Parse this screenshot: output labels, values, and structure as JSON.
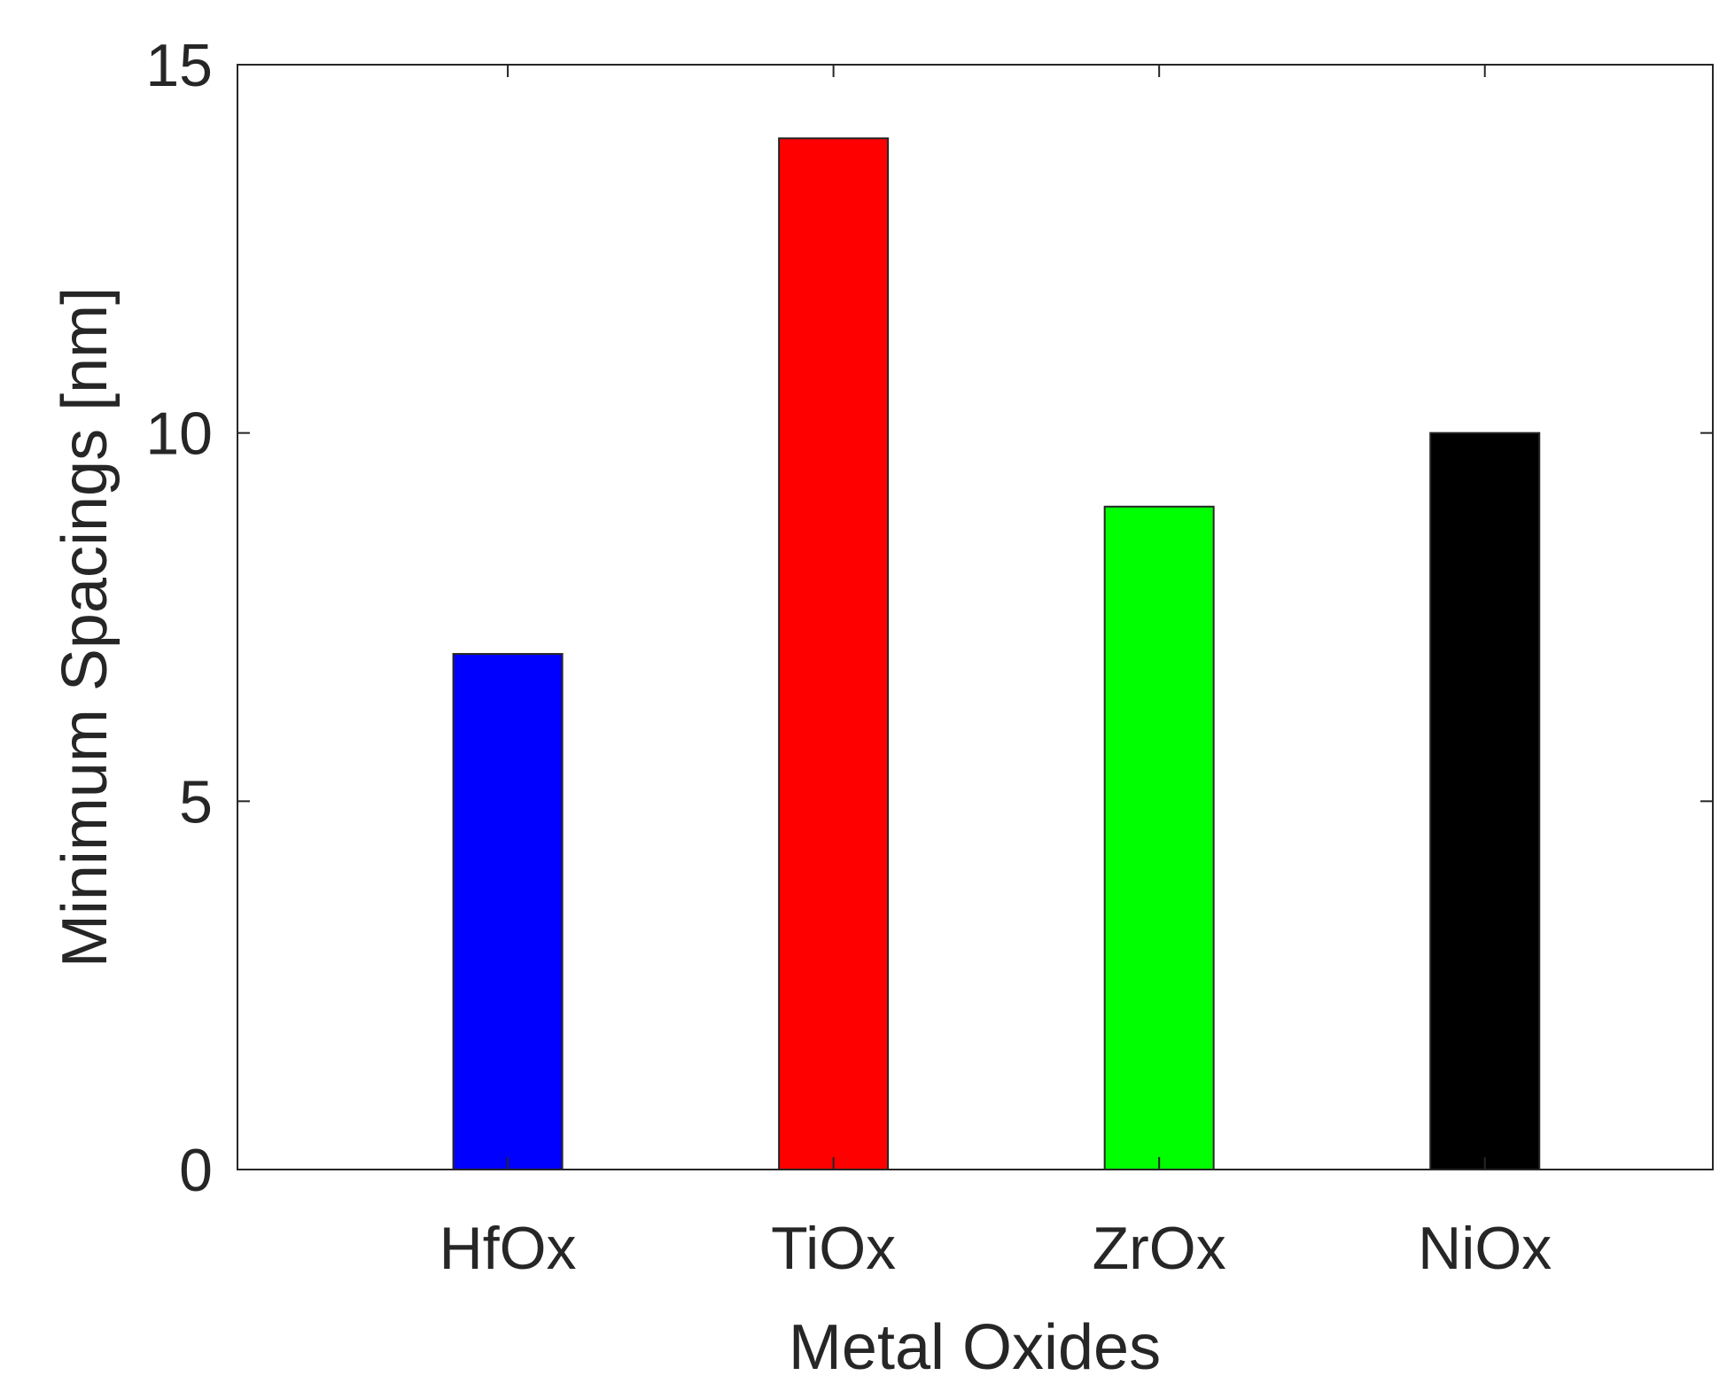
{
  "chart_data": {
    "type": "bar",
    "title": "",
    "xlabel": "Metal Oxides",
    "ylabel": "Minimum Spacings [nm]",
    "categories": [
      "HfOx",
      "TiOx",
      "ZrOx",
      "NiOx"
    ],
    "values": [
      7,
      14,
      9,
      10
    ],
    "colors": [
      "#0000ff",
      "#ff0000",
      "#00ff00",
      "#000000"
    ],
    "ylim": [
      0,
      15
    ],
    "yticks": [
      0,
      5,
      10,
      15
    ],
    "xlim": [
      0.17,
      4.7
    ],
    "grid": false,
    "legend": "none"
  }
}
